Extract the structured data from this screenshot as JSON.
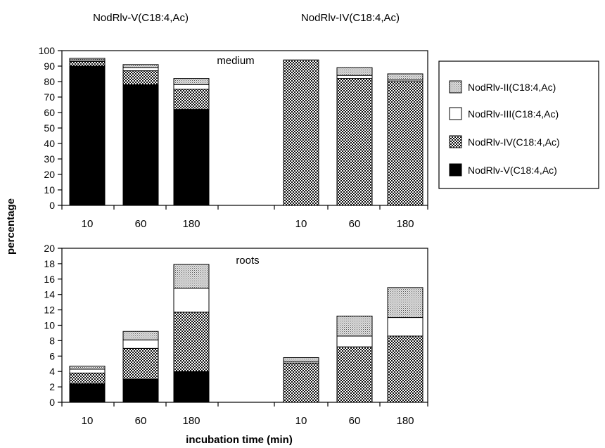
{
  "chart_data": {
    "type": "bar",
    "stacked": true,
    "group_titles": [
      "NodRlv-V(C18:4,Ac)",
      "NodRlv-IV(C18:4,Ac)"
    ],
    "categories": [
      "10",
      "60",
      "180"
    ],
    "xlabel": "incubation time (min)",
    "ylabel": "percentage",
    "legend": {
      "placement": "right",
      "entries": [
        {
          "label": "NodRlv-II(C18:4,Ac)",
          "pattern": "stipple"
        },
        {
          "label": "NodRlv-III(C18:4,Ac)",
          "pattern": "white"
        },
        {
          "label": "NodRlv-IV(C18:4,Ac)",
          "pattern": "checker"
        },
        {
          "label": "NodRlv-V(C18:4,Ac)",
          "pattern": "solid"
        }
      ]
    },
    "panels": [
      {
        "label": "medium",
        "ylim": [
          0,
          100
        ],
        "yticks": [
          "0",
          "10",
          "20",
          "30",
          "40",
          "50",
          "60",
          "70",
          "80",
          "90",
          "100"
        ],
        "groups": [
          {
            "bars": [
              {
                "category": "10",
                "V": 90,
                "IV": 3,
                "III": 1,
                "II": 1
              },
              {
                "category": "60",
                "V": 78,
                "IV": 9,
                "III": 2,
                "II": 2
              },
              {
                "category": "180",
                "V": 62,
                "IV": 13,
                "III": 3,
                "II": 4
              }
            ]
          },
          {
            "bars": [
              {
                "category": "10",
                "V": 0,
                "IV": 94,
                "III": 0,
                "II": 0
              },
              {
                "category": "60",
                "V": 0,
                "IV": 82,
                "III": 2,
                "II": 5
              },
              {
                "category": "180",
                "V": 0,
                "IV": 80,
                "III": 1,
                "II": 4
              }
            ]
          }
        ]
      },
      {
        "label": "roots",
        "ylim": [
          0,
          20
        ],
        "yticks": [
          "0",
          "2",
          "4",
          "6",
          "8",
          "10",
          "12",
          "14",
          "16",
          "18",
          "20"
        ],
        "groups": [
          {
            "bars": [
              {
                "category": "10",
                "V": 2.4,
                "IV": 1.4,
                "III": 0.5,
                "II": 0.4
              },
              {
                "category": "60",
                "V": 3.0,
                "IV": 4.0,
                "III": 1.1,
                "II": 1.1
              },
              {
                "category": "180",
                "V": 4.0,
                "IV": 7.7,
                "III": 3.1,
                "II": 3.1
              }
            ]
          },
          {
            "bars": [
              {
                "category": "10",
                "V": 0,
                "IV": 5.1,
                "III": 0.2,
                "II": 0.5
              },
              {
                "category": "60",
                "V": 0,
                "IV": 7.2,
                "III": 1.4,
                "II": 2.6
              },
              {
                "category": "180",
                "V": 0,
                "IV": 8.6,
                "III": 2.4,
                "II": 3.9
              }
            ]
          }
        ]
      }
    ]
  }
}
